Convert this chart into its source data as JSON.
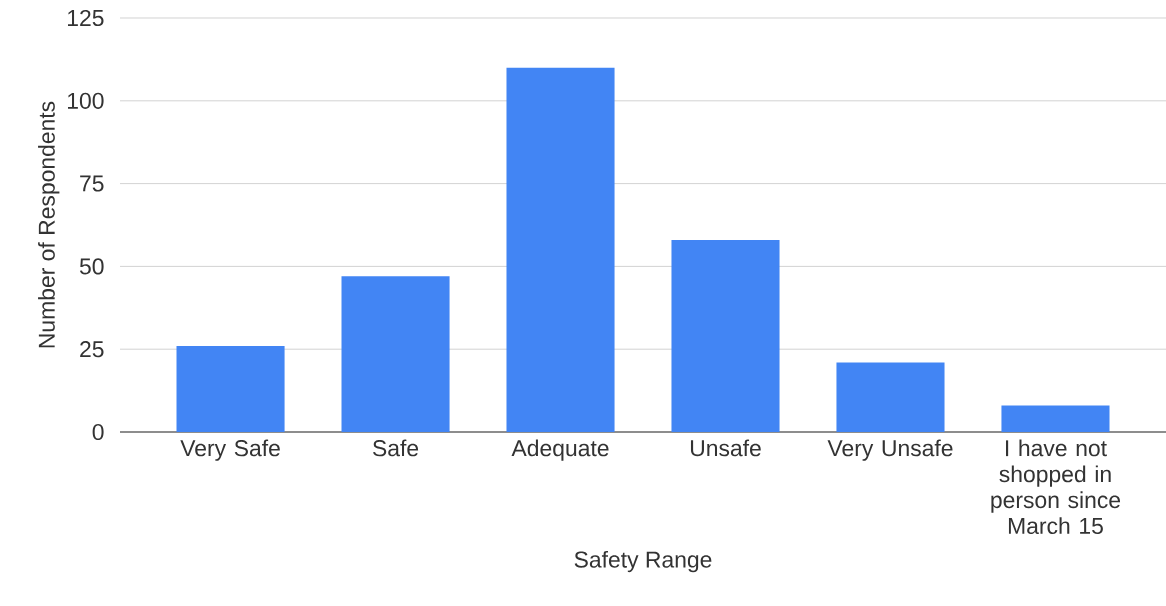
{
  "chart_data": {
    "type": "bar",
    "xlabel": "Safety Range",
    "ylabel": "Number of Respondents",
    "categories": [
      "Very Safe",
      "Safe",
      "Adequate",
      "Unsafe",
      "Very Unsafe",
      "I have not shopped in person since March 15"
    ],
    "values": [
      26,
      47,
      110,
      58,
      21,
      8
    ],
    "color": "#4285f4",
    "ylim": [
      0,
      125
    ],
    "yticks": [
      0,
      25,
      50,
      75,
      100,
      125
    ],
    "grid": "y"
  }
}
